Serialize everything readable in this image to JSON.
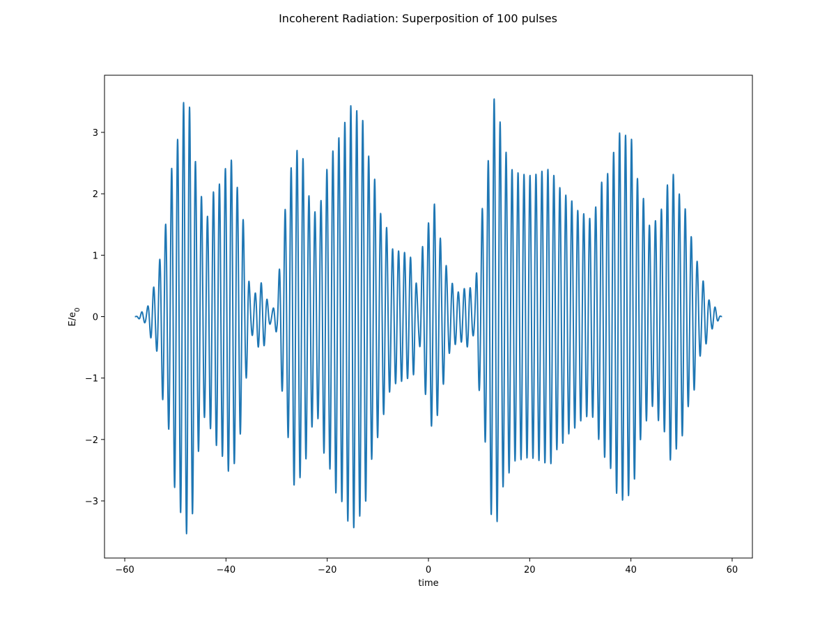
{
  "chart_data": {
    "type": "line",
    "title": "Incoherent Radiation: Superposition of 100 pulses",
    "xlabel": "time",
    "ylabel_main": "E/e",
    "ylabel_sub": "0",
    "xlim": [
      -64,
      64
    ],
    "ylim": [
      -3.93,
      3.93
    ],
    "xticks": [
      -60,
      -40,
      -20,
      0,
      20,
      40,
      60
    ],
    "yticks": [
      -3,
      -2,
      -1,
      0,
      1,
      2,
      3
    ],
    "x_range": [
      -58,
      58
    ],
    "carrier_period": 1.18,
    "line_color": "#1f77b4",
    "grid": false,
    "legend": "none",
    "envelope": [
      [
        -58,
        0.0
      ],
      [
        -56,
        0.1
      ],
      [
        -54,
        0.5
      ],
      [
        -52,
        1.5
      ],
      [
        -50,
        2.8
      ],
      [
        -48,
        3.55
      ],
      [
        -47,
        3.4
      ],
      [
        -45.5,
        2.2
      ],
      [
        -44,
        1.6
      ],
      [
        -42,
        2.1
      ],
      [
        -39,
        2.55
      ],
      [
        -37,
        1.9
      ],
      [
        -36,
        1.0
      ],
      [
        -35,
        0.3
      ],
      [
        -33,
        0.55
      ],
      [
        -31,
        0.1
      ],
      [
        -30,
        0.25
      ],
      [
        -29,
        1.2
      ],
      [
        -28,
        1.9
      ],
      [
        -26.5,
        2.75
      ],
      [
        -25,
        2.6
      ],
      [
        -23,
        1.8
      ],
      [
        -22,
        1.65
      ],
      [
        -20,
        2.4
      ],
      [
        -18,
        2.9
      ],
      [
        -15,
        3.45
      ],
      [
        -13,
        3.2
      ],
      [
        -11,
        2.3
      ],
      [
        -9,
        1.6
      ],
      [
        -7,
        1.1
      ],
      [
        -5,
        1.05
      ],
      [
        -3,
        0.95
      ],
      [
        -2,
        0.35
      ],
      [
        -1,
        1.2
      ],
      [
        1,
        1.85
      ],
      [
        3,
        1.1
      ],
      [
        4,
        0.6
      ],
      [
        6,
        0.4
      ],
      [
        8,
        0.5
      ],
      [
        9,
        0.3
      ],
      [
        10,
        1.2
      ],
      [
        11,
        2.0
      ],
      [
        13,
        3.55
      ],
      [
        14,
        3.2
      ],
      [
        15,
        2.7
      ],
      [
        17,
        2.35
      ],
      [
        20,
        2.3
      ],
      [
        24,
        2.4
      ],
      [
        26,
        2.1
      ],
      [
        28,
        1.9
      ],
      [
        30,
        1.7
      ],
      [
        32,
        1.6
      ],
      [
        35,
        2.3
      ],
      [
        38,
        3.0
      ],
      [
        40,
        2.9
      ],
      [
        42,
        2.0
      ],
      [
        44,
        1.45
      ],
      [
        46,
        1.75
      ],
      [
        48,
        2.35
      ],
      [
        50,
        1.95
      ],
      [
        52,
        1.3
      ],
      [
        54,
        0.6
      ],
      [
        56,
        0.2
      ],
      [
        58,
        0.0
      ]
    ]
  }
}
